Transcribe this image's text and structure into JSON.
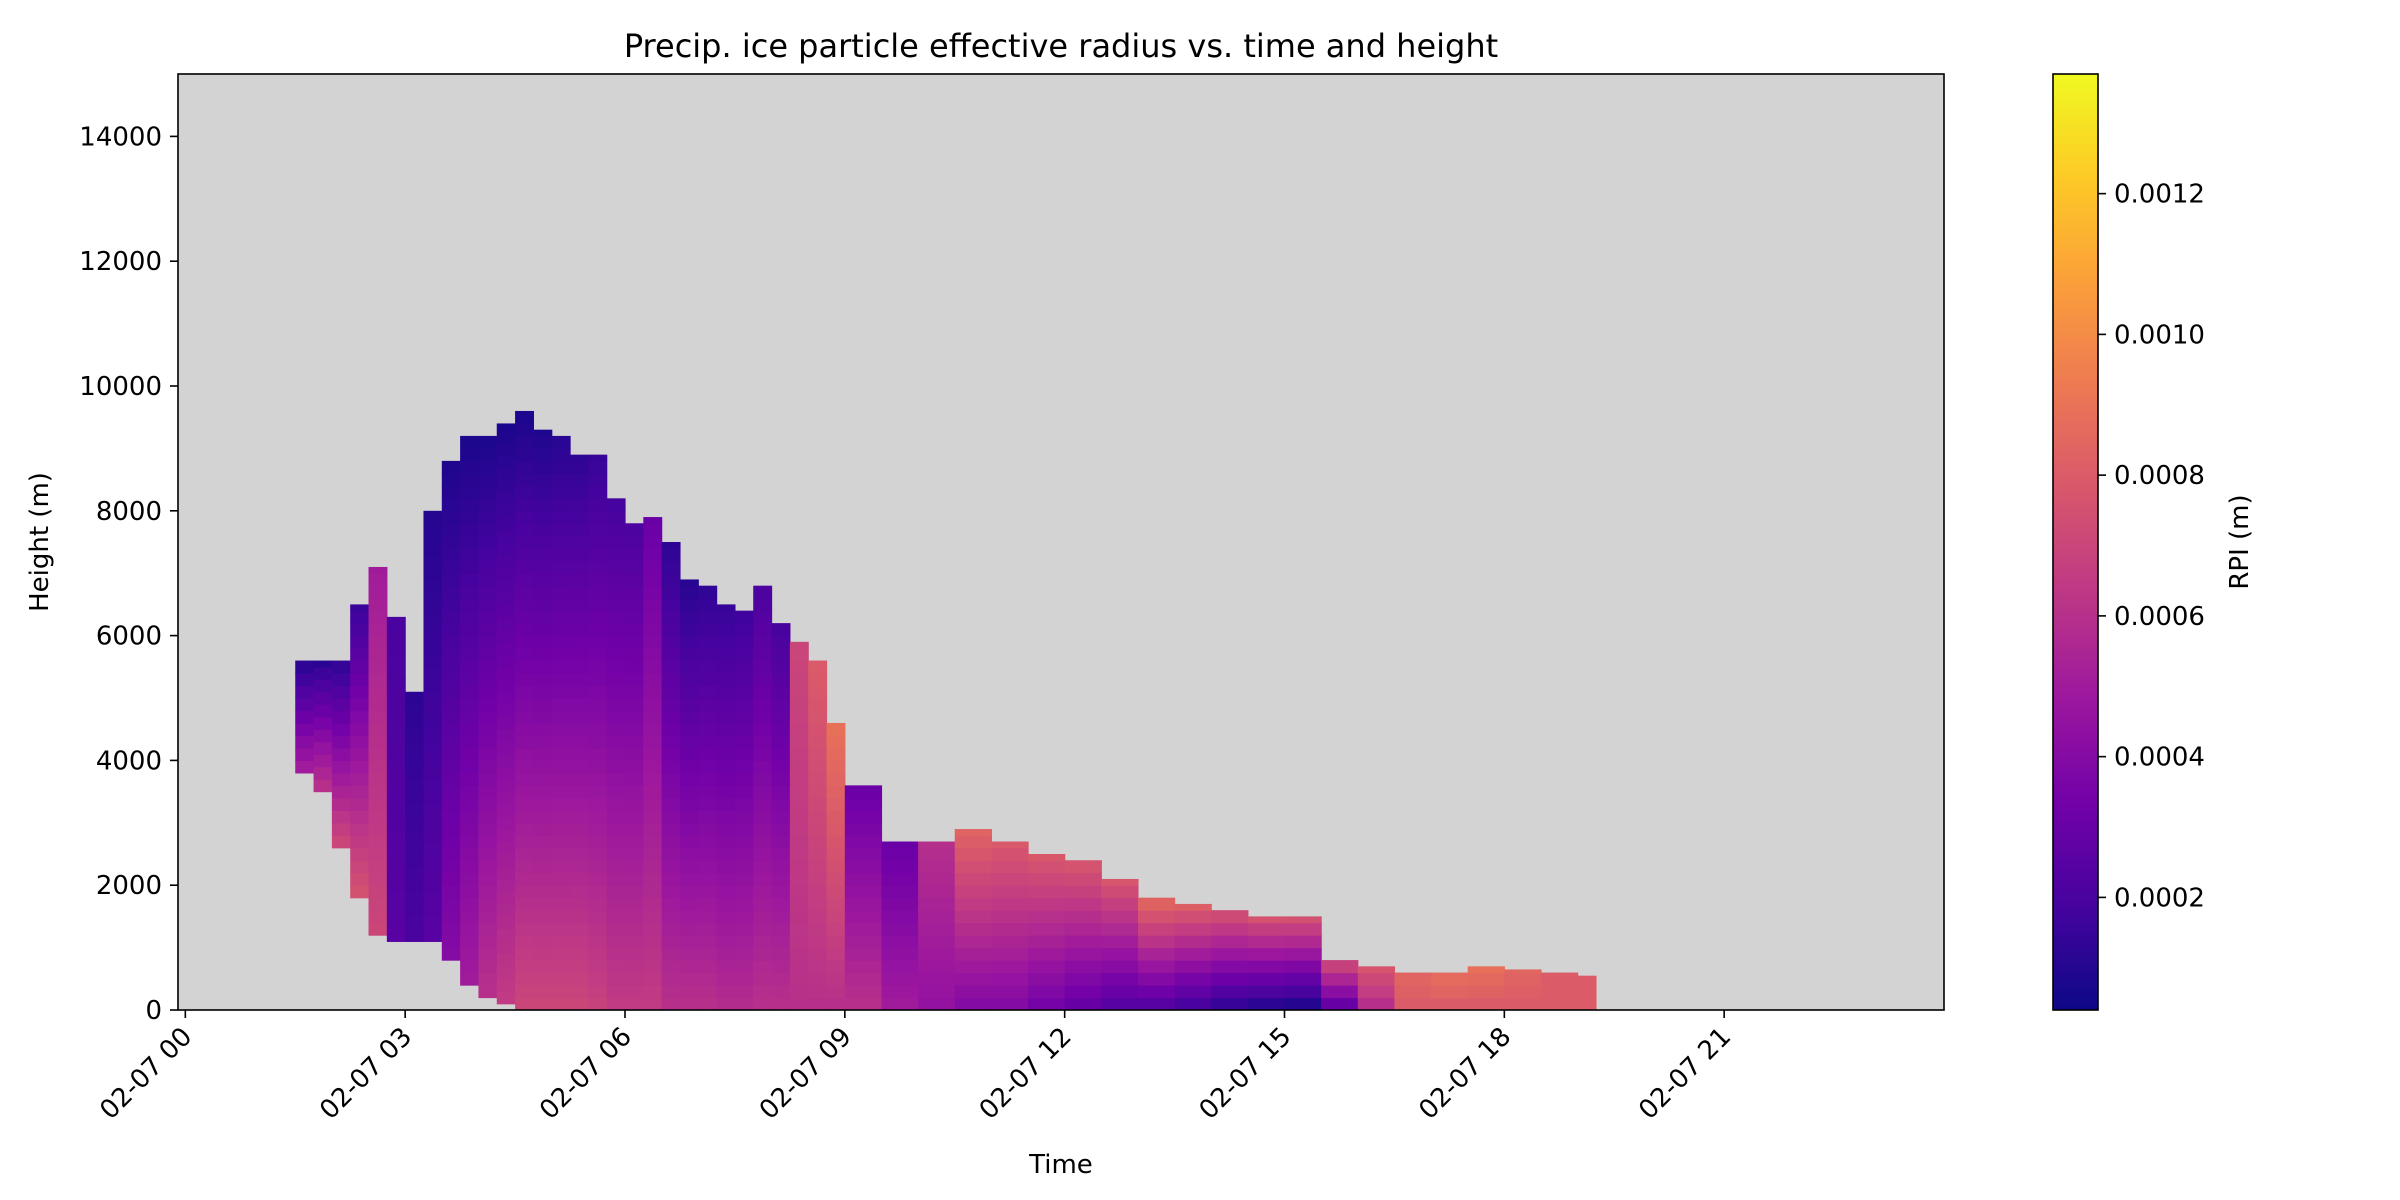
{
  "chart_data": {
    "type": "heatmap",
    "title": "Precip. ice particle effective radius vs. time and height",
    "xlabel": "Time",
    "ylabel": "Height (m)",
    "colorbar_label": "RPI (m)",
    "colormap": "plasma",
    "background_color": "#d3d3d3",
    "x_axis_range_hours": [
      -0.1,
      24.0
    ],
    "ylim": [
      0,
      15000
    ],
    "x_ticks": [
      {
        "hour": 0,
        "label": "02-07 00"
      },
      {
        "hour": 3,
        "label": "02-07 03"
      },
      {
        "hour": 6,
        "label": "02-07 06"
      },
      {
        "hour": 9,
        "label": "02-07 09"
      },
      {
        "hour": 12,
        "label": "02-07 12"
      },
      {
        "hour": 15,
        "label": "02-07 15"
      },
      {
        "hour": 18,
        "label": "02-07 18"
      },
      {
        "hour": 21,
        "label": "02-07 21"
      }
    ],
    "y_ticks": [
      {
        "value": 0,
        "label": "0"
      },
      {
        "value": 2000,
        "label": "2000"
      },
      {
        "value": 4000,
        "label": "4000"
      },
      {
        "value": 6000,
        "label": "6000"
      },
      {
        "value": 8000,
        "label": "8000"
      },
      {
        "value": 10000,
        "label": "10000"
      },
      {
        "value": 12000,
        "label": "12000"
      },
      {
        "value": 14000,
        "label": "14000"
      }
    ],
    "colorbar_range": [
      4e-05,
      0.00137
    ],
    "colorbar_ticks": [
      {
        "value": 0.0002,
        "label": "0.0002"
      },
      {
        "value": 0.0004,
        "label": "0.0004"
      },
      {
        "value": 0.0006,
        "label": "0.0006"
      },
      {
        "value": 0.0008,
        "label": "0.0008"
      },
      {
        "value": 0.001,
        "label": "0.0010"
      },
      {
        "value": 0.0012,
        "label": "0.0012"
      }
    ],
    "grid": false,
    "cloud_envelope": {
      "time_hours": [
        1.5,
        1.75,
        2.0,
        2.25,
        2.5,
        2.75,
        3.0,
        3.25,
        3.5,
        3.75,
        4.0,
        4.25,
        4.5,
        4.75,
        5.0,
        5.25,
        5.5,
        5.75,
        6.0,
        6.25,
        6.5,
        6.75,
        7.0,
        7.25,
        7.5,
        7.75,
        8.0,
        8.25,
        8.5,
        8.75,
        9.0,
        9.5,
        10.0,
        10.5,
        11.0,
        11.5,
        12.0,
        12.5,
        13.0,
        13.5,
        14.0,
        14.5,
        15.0,
        15.5,
        16.0,
        16.5,
        17.0,
        17.5,
        18.0,
        18.5,
        19.0,
        19.25
      ],
      "cloud_top_m": [
        5600,
        5600,
        5600,
        6500,
        7100,
        6300,
        5100,
        8000,
        8800,
        9200,
        9200,
        9400,
        9600,
        9300,
        9200,
        8900,
        8900,
        8200,
        7800,
        7900,
        7500,
        6900,
        6800,
        6500,
        6400,
        6800,
        6200,
        5900,
        5600,
        4600,
        3600,
        2700,
        2700,
        2900,
        2700,
        2500,
        2400,
        2100,
        1800,
        1700,
        1600,
        1500,
        1500,
        800,
        700,
        600,
        600,
        700,
        650,
        600,
        550,
        0
      ],
      "cloud_base_m": [
        3800,
        3500,
        2600,
        1800,
        1200,
        1100,
        1100,
        1100,
        800,
        400,
        200,
        100,
        0,
        0,
        0,
        0,
        0,
        0,
        0,
        0,
        0,
        0,
        0,
        0,
        0,
        0,
        0,
        0,
        0,
        0,
        0,
        0,
        0,
        0,
        0,
        0,
        0,
        0,
        0,
        0,
        0,
        0,
        0,
        0,
        0,
        0,
        0,
        0,
        0,
        0,
        0,
        0
      ],
      "rpi_top_m": [
        8e-05,
        9e-05,
        0.0001,
        0.00014,
        0.0005,
        0.0002,
        0.00012,
        0.0001,
        8e-05,
        7e-05,
        7e-05,
        7e-05,
        7e-05,
        8e-05,
        0.0001,
        0.00012,
        0.00014,
        0.00018,
        0.0002,
        0.0003,
        0.00012,
        0.0001,
        0.00012,
        0.00014,
        0.00016,
        0.0002,
        0.00018,
        0.0007,
        0.0008,
        0.0009,
        0.0003,
        0.0003,
        0.0006,
        0.00085,
        0.0008,
        0.0008,
        0.0008,
        0.0008,
        0.0009,
        0.00085,
        0.0008,
        0.0008,
        0.0008,
        0.0008,
        0.0008,
        0.00085,
        0.0009,
        0.0009,
        0.00085,
        0.0008,
        0.0008,
        0.0009
      ],
      "rpi_bottom_m": [
        0.0005,
        0.0006,
        0.0007,
        0.00075,
        0.0007,
        0.00025,
        0.0002,
        0.00025,
        0.0004,
        0.0005,
        0.0006,
        0.00065,
        0.0007,
        0.0007,
        0.0007,
        0.0007,
        0.00068,
        0.00065,
        0.00065,
        0.00065,
        0.0006,
        0.0006,
        0.0006,
        0.00058,
        0.00058,
        0.0006,
        0.0006,
        0.0006,
        0.0006,
        0.0006,
        0.0006,
        0.0005,
        0.00045,
        0.0004,
        0.0004,
        0.00035,
        0.0003,
        0.00025,
        0.00025,
        0.0002,
        0.00015,
        0.00012,
        0.0001,
        0.0003,
        0.0006,
        0.0008,
        0.0008,
        0.0008,
        0.0008,
        0.0008,
        0.0008,
        0.0009
      ]
    }
  }
}
